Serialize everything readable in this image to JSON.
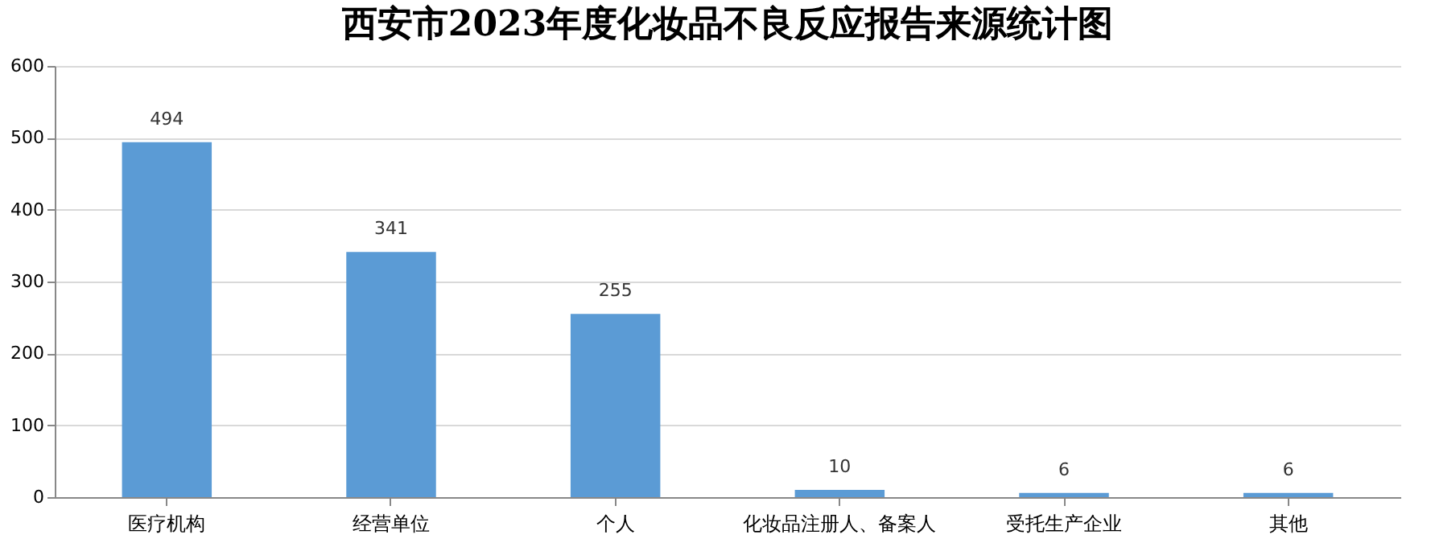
{
  "chart_data": {
    "type": "bar",
    "title": "西安市2023年度化妆品不良反应报告来源统计图",
    "categories": [
      "医疗机构",
      "经营单位",
      "个人",
      "化妆品注册人、备案人",
      "受托生产企业",
      "其他"
    ],
    "values": [
      494,
      341,
      255,
      10,
      6,
      6
    ],
    "color": "#5b9bd5",
    "ylim": [
      0,
      600
    ],
    "yticks": [
      0,
      100,
      200,
      300,
      400,
      500,
      600
    ],
    "grid": "y",
    "data_labels": true
  }
}
